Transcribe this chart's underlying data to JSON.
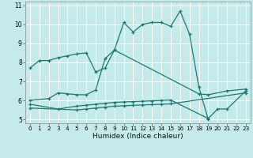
{
  "xlabel": "Humidex (Indice chaleur)",
  "background_color": "#c5eaea",
  "grid_color": "#ffffff",
  "line_color": "#1a7a6e",
  "xlim": [
    -0.5,
    23.5
  ],
  "ylim": [
    4.8,
    11.2
  ],
  "yticks": [
    5,
    6,
    7,
    8,
    9,
    10,
    11
  ],
  "xticks": [
    0,
    1,
    2,
    3,
    4,
    5,
    6,
    7,
    8,
    9,
    10,
    11,
    12,
    13,
    14,
    15,
    16,
    17,
    18,
    19,
    20,
    21,
    22,
    23
  ],
  "series": [
    {
      "x": [
        0,
        1,
        2,
        3,
        4,
        5,
        6,
        7,
        8,
        9,
        10,
        11,
        12,
        13,
        14,
        15,
        16,
        17,
        18,
        19
      ],
      "y": [
        7.7,
        8.1,
        8.1,
        8.25,
        8.35,
        8.45,
        8.5,
        7.5,
        7.7,
        8.65,
        10.1,
        9.6,
        10.0,
        10.1,
        10.1,
        9.9,
        10.7,
        9.5,
        6.7,
        5.0
      ]
    },
    {
      "x": [
        0,
        2,
        3,
        4,
        5,
        6,
        7,
        8,
        9,
        18,
        19,
        21,
        23
      ],
      "y": [
        6.0,
        6.1,
        6.4,
        6.35,
        6.3,
        6.3,
        6.55,
        8.2,
        8.65,
        6.35,
        6.3,
        6.5,
        6.6
      ]
    },
    {
      "x": [
        0,
        3,
        5,
        6,
        7,
        8,
        9,
        10,
        11,
        12,
        13,
        14,
        15,
        19,
        20,
        21,
        23
      ],
      "y": [
        5.8,
        5.55,
        5.7,
        5.75,
        5.8,
        5.85,
        5.9,
        5.92,
        5.94,
        5.96,
        5.98,
        6.0,
        6.02,
        5.05,
        5.55,
        5.55,
        6.5
      ]
    },
    {
      "x": [
        0,
        5,
        6,
        7,
        8,
        9,
        10,
        11,
        12,
        13,
        14,
        15,
        23
      ],
      "y": [
        5.6,
        5.5,
        5.55,
        5.6,
        5.65,
        5.7,
        5.72,
        5.74,
        5.76,
        5.78,
        5.8,
        5.82,
        6.4
      ]
    }
  ]
}
